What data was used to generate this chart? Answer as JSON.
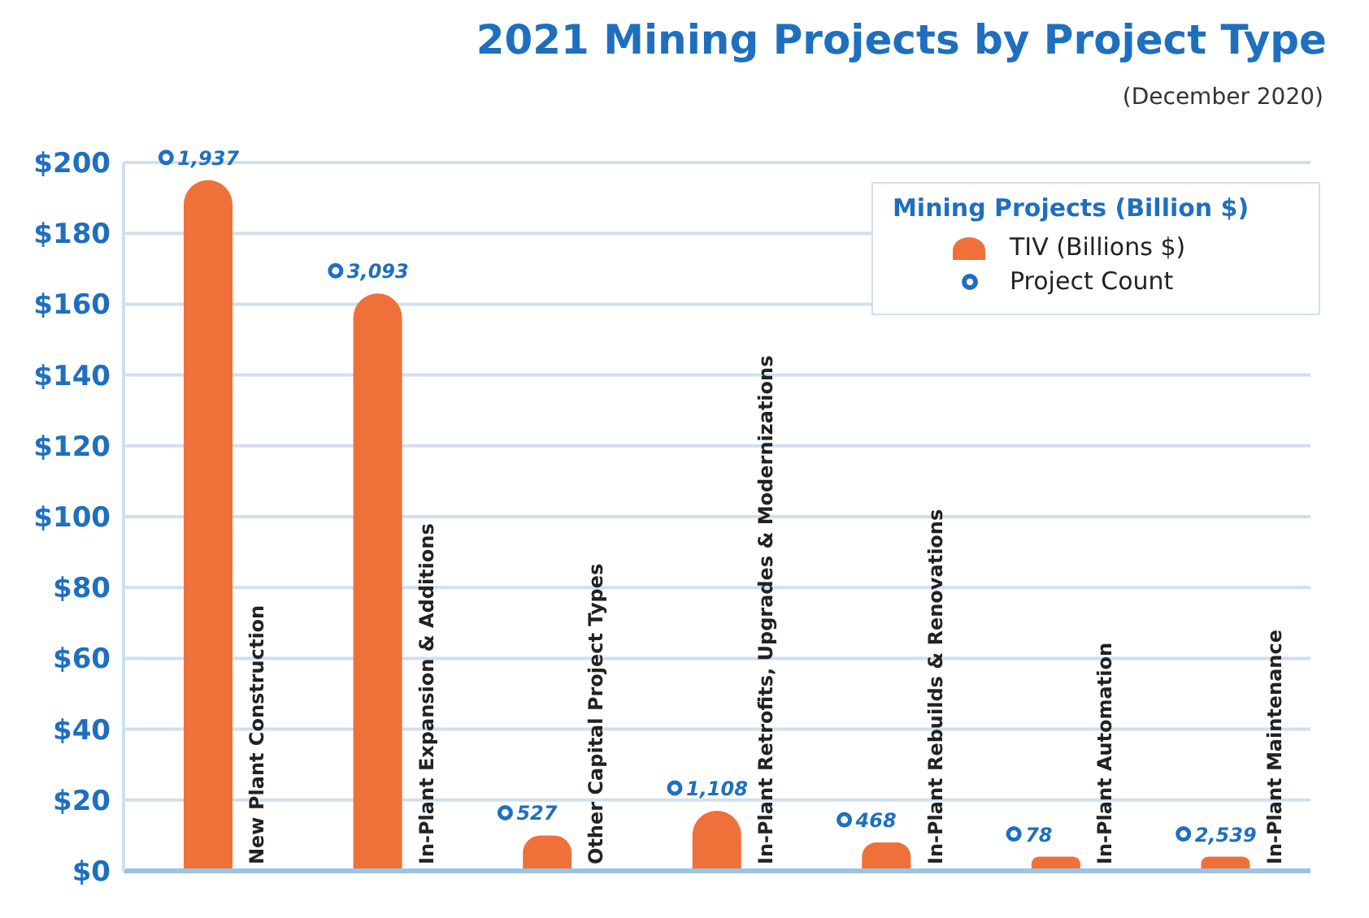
{
  "chart_data": {
    "type": "bar",
    "title": "2021 Mining Projects by Project Type",
    "subtitle": "(December 2020)",
    "legend_title": "Mining Projects (Billion $)",
    "categories": [
      "New Plant Construction",
      "In-Plant Expansion & Additions",
      "Other Capital Project Types",
      "In-Plant Retrofits, Upgrades & Modernizations",
      "In-Plant Rebuilds & Renovations",
      "In-Plant Automation",
      "In-Plant Maintenance"
    ],
    "series": [
      {
        "name": "TIV (Billions $)",
        "color": "#f0703a",
        "values": [
          195,
          163,
          10,
          17,
          8,
          4,
          4
        ]
      }
    ],
    "annotations": [
      "1,937",
      "3,093",
      "527",
      "1,108",
      "468",
      "78",
      "2,539",
      "Project Count"
    ],
    "ylim": [
      0,
      200
    ],
    "yticks": [
      {
        "value": 0,
        "label": "$0"
      },
      {
        "value": 20,
        "label": "$20"
      },
      {
        "value": 40,
        "label": "$40"
      },
      {
        "value": 60,
        "label": "$60"
      },
      {
        "value": 80,
        "label": "$80"
      },
      {
        "value": 100,
        "label": "$100"
      },
      {
        "value": 120,
        "label": "$120"
      },
      {
        "value": 140,
        "label": "$140"
      },
      {
        "value": 160,
        "label": "$160"
      },
      {
        "value": 180,
        "label": "$180"
      },
      {
        "value": 200,
        "label": "$200"
      }
    ],
    "grid": "y",
    "legend": "top right"
  }
}
